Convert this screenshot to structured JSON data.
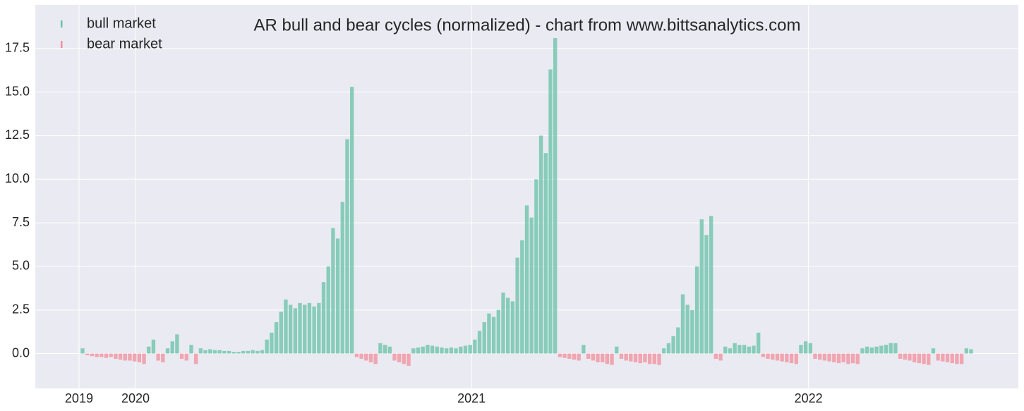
{
  "chart_data": {
    "type": "bar",
    "title": "AR bull and bear cycles (normalized)  - chart from www.bittsanalytics.com",
    "x": [
      0,
      1,
      2,
      3,
      4,
      5,
      6,
      7,
      8,
      9,
      10,
      11,
      12,
      13,
      14,
      15,
      16,
      17,
      18,
      19,
      20,
      21,
      22,
      23,
      24,
      25,
      26,
      27,
      28,
      29,
      30,
      31,
      32,
      33,
      34,
      35,
      36,
      37,
      38,
      39,
      40,
      41,
      42,
      43,
      44,
      45,
      46,
      47,
      48,
      49,
      50,
      51,
      52,
      53,
      54,
      55,
      56,
      57,
      58,
      59,
      60,
      61,
      62,
      63,
      64,
      65,
      66,
      67,
      68,
      69,
      70,
      71,
      72,
      73,
      74,
      75,
      76,
      77,
      78,
      79,
      80,
      81,
      82,
      83,
      84,
      85,
      86,
      87,
      88,
      89,
      90,
      91,
      92,
      93,
      94,
      95,
      96,
      97,
      98,
      99,
      100,
      101,
      102,
      103,
      104,
      105,
      106,
      107,
      108,
      109,
      110,
      111,
      112,
      113,
      114,
      115,
      116,
      117,
      118,
      119,
      120,
      121,
      122,
      123,
      124,
      125,
      126,
      127,
      128,
      129,
      130,
      131,
      132,
      133,
      134,
      135,
      136,
      137,
      138,
      139,
      140,
      141,
      142,
      143,
      144,
      145,
      146,
      147,
      148,
      149,
      150,
      151,
      152,
      153,
      154,
      155,
      156,
      157,
      158,
      159,
      160,
      161,
      162,
      163,
      164,
      165,
      166,
      167,
      168,
      169,
      170,
      171,
      172,
      173,
      174,
      175,
      176,
      177,
      178,
      179,
      180,
      181,
      182,
      183,
      184,
      185,
      186,
      187,
      188
    ],
    "series": [
      {
        "name": "bull market",
        "color": "#66c2a5",
        "values": [
          0.3,
          null,
          null,
          null,
          null,
          null,
          null,
          null,
          null,
          null,
          null,
          null,
          null,
          null,
          0.4,
          0.8,
          null,
          null,
          0.3,
          0.7,
          1.1,
          null,
          null,
          0.5,
          null,
          0.3,
          0.2,
          0.25,
          0.2,
          0.2,
          0.15,
          0.15,
          0.1,
          0.1,
          0.15,
          0.15,
          0.2,
          0.15,
          0.2,
          0.8,
          1.2,
          1.8,
          2.4,
          3.1,
          2.8,
          2.6,
          2.9,
          2.8,
          2.9,
          2.7,
          2.9,
          4.1,
          5.0,
          7.2,
          6.6,
          8.7,
          12.3,
          15.3,
          null,
          null,
          null,
          null,
          null,
          0.6,
          0.5,
          0.4,
          null,
          null,
          null,
          null,
          0.3,
          0.35,
          0.4,
          0.5,
          0.45,
          0.4,
          0.35,
          0.3,
          0.35,
          0.3,
          0.4,
          0.45,
          0.5,
          0.8,
          1.3,
          1.8,
          2.3,
          2.1,
          2.5,
          3.5,
          3.2,
          3.0,
          5.5,
          6.5,
          8.5,
          7.8,
          10.0,
          12.5,
          11.5,
          16.3,
          18.1,
          null,
          null,
          null,
          null,
          null,
          0.5,
          null,
          null,
          null,
          null,
          null,
          null,
          0.4,
          null,
          null,
          null,
          null,
          null,
          null,
          null,
          null,
          null,
          0.3,
          0.6,
          1.0,
          1.5,
          3.4,
          2.8,
          2.5,
          5.0,
          7.7,
          6.8,
          7.9,
          null,
          null,
          0.4,
          0.3,
          0.6,
          0.5,
          0.5,
          0.4,
          0.45,
          1.2,
          null,
          null,
          null,
          null,
          null,
          null,
          null,
          null,
          0.5,
          0.7,
          0.6,
          null,
          null,
          null,
          null,
          null,
          null,
          null,
          null,
          null,
          null,
          0.3,
          0.4,
          0.35,
          0.4,
          0.45,
          0.5,
          0.6,
          0.6,
          null,
          null,
          null,
          null,
          null,
          null,
          null,
          0.3,
          null,
          null,
          null,
          null,
          null,
          null,
          0.3,
          0.25
        ]
      },
      {
        "name": "bear market",
        "color": "#f28e9b",
        "values": [
          null,
          -0.1,
          -0.15,
          -0.2,
          -0.2,
          -0.25,
          -0.2,
          -0.3,
          -0.35,
          -0.4,
          -0.4,
          -0.45,
          -0.5,
          -0.6,
          null,
          null,
          -0.4,
          -0.5,
          null,
          null,
          null,
          -0.3,
          -0.4,
          null,
          -0.6,
          null,
          null,
          null,
          null,
          null,
          null,
          null,
          null,
          null,
          null,
          null,
          null,
          null,
          null,
          null,
          null,
          null,
          null,
          null,
          null,
          null,
          null,
          null,
          null,
          null,
          null,
          null,
          null,
          null,
          null,
          null,
          null,
          null,
          -0.2,
          -0.3,
          -0.4,
          -0.5,
          -0.6,
          null,
          null,
          null,
          -0.4,
          -0.5,
          -0.6,
          -0.7,
          null,
          null,
          null,
          null,
          null,
          null,
          null,
          null,
          null,
          null,
          null,
          null,
          null,
          null,
          null,
          null,
          null,
          null,
          null,
          null,
          null,
          null,
          null,
          null,
          null,
          null,
          null,
          null,
          null,
          null,
          null,
          -0.2,
          -0.25,
          -0.3,
          -0.35,
          -0.4,
          null,
          -0.3,
          -0.4,
          -0.5,
          -0.5,
          -0.6,
          -0.65,
          null,
          -0.3,
          -0.4,
          -0.45,
          -0.5,
          -0.55,
          -0.5,
          -0.6,
          -0.6,
          -0.65,
          null,
          null,
          null,
          null,
          null,
          null,
          null,
          null,
          null,
          null,
          null,
          -0.3,
          -0.4,
          null,
          null,
          null,
          null,
          null,
          null,
          null,
          null,
          -0.2,
          -0.3,
          -0.35,
          -0.4,
          -0.45,
          -0.5,
          -0.55,
          -0.6,
          null,
          null,
          null,
          -0.3,
          -0.35,
          -0.4,
          -0.45,
          -0.5,
          -0.55,
          -0.5,
          -0.6,
          -0.55,
          -0.6,
          null,
          null,
          null,
          null,
          null,
          null,
          null,
          null,
          -0.3,
          -0.35,
          -0.4,
          -0.5,
          -0.55,
          -0.6,
          -0.65,
          null,
          -0.4,
          -0.45,
          -0.5,
          -0.55,
          -0.6,
          -0.6,
          null,
          null
        ]
      }
    ],
    "xlim": [
      -10,
      198
    ],
    "xticks": [
      {
        "value": -0.75,
        "label": "2019"
      },
      {
        "value": 11.2,
        "label": "2020"
      },
      {
        "value": 82.3,
        "label": "2021"
      },
      {
        "value": 153.6,
        "label": "2022"
      }
    ],
    "ylim": [
      -2,
      20
    ],
    "yticks": [
      {
        "value": 0,
        "label": "0.0"
      },
      2.5,
      {
        "value": 5,
        "label": "5.0"
      },
      7.5,
      {
        "value": 10,
        "label": "10.0"
      },
      12.5,
      {
        "value": 15,
        "label": "15.0"
      },
      17.5
    ],
    "grid": true,
    "legend": "upper left"
  }
}
